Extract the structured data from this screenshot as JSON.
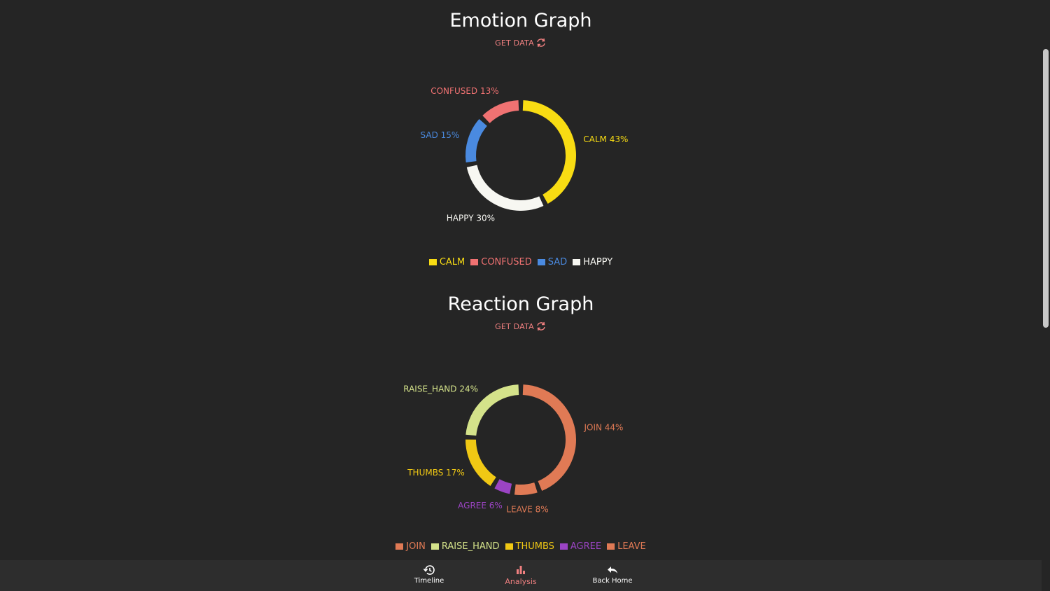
{
  "colors": {
    "accent": "#f08080",
    "background": "#252525",
    "nav_background": "#2d2d2d"
  },
  "emotion": {
    "title": "Emotion Graph",
    "get_data_label": "GET DATA",
    "refresh_icon": "refresh-icon"
  },
  "reaction": {
    "title": "Reaction Graph",
    "get_data_label": "GET DATA",
    "refresh_icon": "refresh-icon"
  },
  "chart_data": [
    {
      "type": "pie",
      "variant": "donut",
      "categories": [
        "CALM",
        "HAPPY",
        "SAD",
        "CONFUSED"
      ],
      "values": [
        43,
        30,
        15,
        13
      ],
      "slice_labels": [
        "CALM 43%",
        "HAPPY 30%",
        "SAD 15%",
        "CONFUSED 13%"
      ],
      "colors": [
        "#f8dc13",
        "#f7f7f2",
        "#4a8ae0",
        "#f07272"
      ],
      "legend": [
        "CALM",
        "CONFUSED",
        "SAD",
        "HAPPY"
      ],
      "legend_colors": [
        "#f8dc13",
        "#f07272",
        "#4a8ae0",
        "#f7f7f2"
      ],
      "legend_position": "bottom"
    },
    {
      "type": "pie",
      "variant": "donut",
      "categories": [
        "JOIN",
        "LEAVE",
        "AGREE",
        "THUMBS",
        "RAISE_HAND"
      ],
      "values": [
        44,
        8,
        6,
        17,
        24
      ],
      "slice_labels": [
        "JOIN 44%",
        "LEAVE 8%",
        "AGREE 6%",
        "THUMBS 17%",
        "RAISE_HAND 24%"
      ],
      "colors": [
        "#e07a55",
        "#e07a55",
        "#9b44c4",
        "#f0c814",
        "#d4e28a"
      ],
      "legend": [
        "JOIN",
        "RAISE_HAND",
        "THUMBS",
        "AGREE",
        "LEAVE"
      ],
      "legend_colors": [
        "#e07a55",
        "#d4e28a",
        "#f0c814",
        "#9b44c4",
        "#e07a55"
      ],
      "legend_position": "bottom"
    }
  ],
  "nav": {
    "items": [
      {
        "label": "Timeline",
        "icon": "history-icon",
        "active": false
      },
      {
        "label": "Analysis",
        "icon": "bar-chart-icon",
        "active": true
      },
      {
        "label": "Back Home",
        "icon": "reply-arrow-icon",
        "active": false
      }
    ]
  }
}
